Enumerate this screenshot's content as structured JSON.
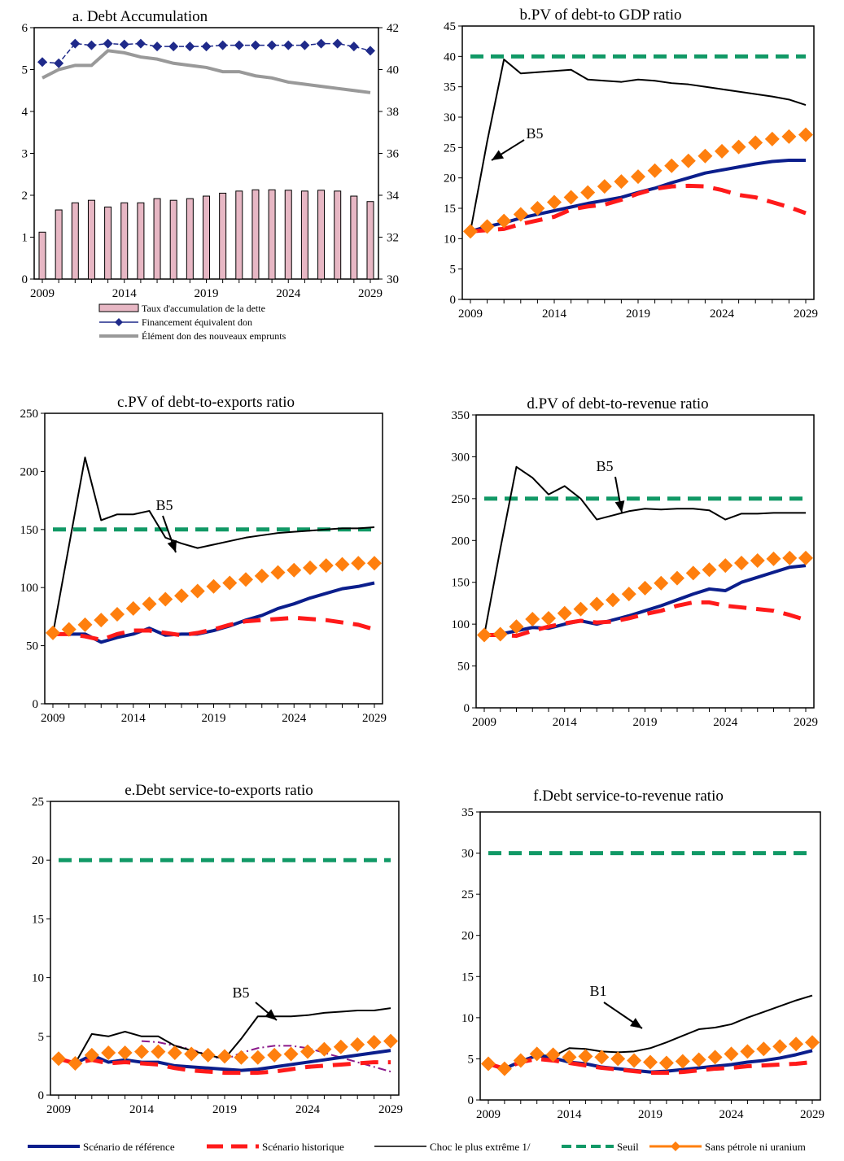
{
  "colors": {
    "reference": "#0b1e8c",
    "historical": "#ff1a1a",
    "extreme_shock": "#000000",
    "threshold": "#119966",
    "no_oil_uranium": "#ff7f0e",
    "debt_bar": "#e7b7c4",
    "grant_line": "#999999",
    "financing_marker": "#1f2a8a",
    "dashdot": "#8b1a8b"
  },
  "legend_bottom": {
    "reference": "Scénario de référence",
    "historical": "Scénario historique",
    "extreme_shock": "Choc le plus extrême 1/",
    "threshold": "Seuil",
    "no_oil_uranium": "Sans pétrole ni uranium"
  },
  "chart_data": [
    {
      "id": "a",
      "type": "bar",
      "title": "a. Debt Accumulation",
      "x": [
        2009,
        2010,
        2011,
        2012,
        2013,
        2014,
        2015,
        2016,
        2017,
        2018,
        2019,
        2020,
        2021,
        2022,
        2023,
        2024,
        2025,
        2026,
        2027,
        2028,
        2029
      ],
      "x_ticks": [
        "2009",
        "2014",
        "2019",
        "2024",
        "2029"
      ],
      "ylim": [
        0,
        6
      ],
      "y_ticks": [
        "0",
        "1",
        "2",
        "3",
        "4",
        "5",
        "6"
      ],
      "y2lim": [
        30,
        42
      ],
      "y2_ticks": [
        "30",
        "32",
        "34",
        "36",
        "38",
        "40",
        "42"
      ],
      "legend": [
        "Taux d'accumulation de la dette",
        "Financement équivalent don",
        "Élément don des nouveaux emprunts"
      ],
      "series": [
        {
          "name": "Taux d'accumulation de la dette",
          "axis": "left",
          "kind": "bar",
          "values": [
            1.12,
            1.65,
            1.82,
            1.88,
            1.72,
            1.82,
            1.82,
            1.92,
            1.88,
            1.92,
            1.98,
            2.05,
            2.1,
            2.13,
            2.13,
            2.12,
            2.1,
            2.12,
            2.1,
            1.98,
            1.85
          ]
        },
        {
          "name": "Financement équivalent don",
          "axis": "left",
          "kind": "line-marker",
          "values": [
            5.18,
            5.15,
            5.62,
            5.58,
            5.62,
            5.6,
            5.62,
            5.55,
            5.55,
            5.55,
            5.55,
            5.58,
            5.58,
            5.58,
            5.58,
            5.58,
            5.58,
            5.62,
            5.62,
            5.55,
            5.45
          ]
        },
        {
          "name": "Élément don des nouveaux emprunts",
          "axis": "right",
          "kind": "line",
          "values": [
            39.6,
            40.0,
            40.2,
            40.2,
            40.9,
            40.8,
            40.6,
            40.5,
            40.3,
            40.2,
            40.1,
            39.9,
            39.9,
            39.7,
            39.6,
            39.4,
            39.3,
            39.2,
            39.1,
            39.0,
            38.9
          ]
        }
      ]
    },
    {
      "id": "b",
      "type": "line",
      "title": "b.PV of debt-to GDP ratio",
      "x": [
        2009,
        2010,
        2011,
        2012,
        2013,
        2014,
        2015,
        2016,
        2017,
        2018,
        2019,
        2020,
        2021,
        2022,
        2023,
        2024,
        2025,
        2026,
        2027,
        2028,
        2029
      ],
      "x_ticks": [
        "2009",
        "2014",
        "2019",
        "2024",
        "2029"
      ],
      "ylim": [
        0,
        45
      ],
      "y_ticks": [
        "0",
        "5",
        "10",
        "15",
        "20",
        "25",
        "30",
        "35",
        "40",
        "45"
      ],
      "annotation": "B5",
      "series": [
        {
          "name": "Scénario de référence",
          "key": "reference",
          "values": [
            11.2,
            12.0,
            12.6,
            13.4,
            14.0,
            14.6,
            15.2,
            15.8,
            16.3,
            16.8,
            17.6,
            18.3,
            19.2,
            20.0,
            20.8,
            21.3,
            21.8,
            22.3,
            22.7,
            22.9,
            22.9
          ]
        },
        {
          "name": "Scénario historique",
          "key": "historical",
          "values": [
            11.2,
            11.4,
            11.6,
            12.4,
            13.0,
            13.6,
            14.8,
            15.3,
            15.6,
            16.4,
            17.4,
            18.2,
            18.6,
            18.7,
            18.6,
            18.0,
            17.2,
            16.8,
            16.0,
            15.2,
            14.2
          ]
        },
        {
          "name": "Choc le plus extrême 1/",
          "key": "extreme_shock",
          "values": [
            11.2,
            26,
            39.5,
            37.2,
            37.4,
            37.6,
            37.8,
            36.2,
            36.0,
            35.8,
            36.2,
            36.0,
            35.6,
            35.4,
            35.0,
            34.6,
            34.2,
            33.8,
            33.4,
            32.9,
            32.0
          ]
        },
        {
          "name": "Seuil",
          "key": "threshold",
          "values": [
            40,
            40,
            40,
            40,
            40,
            40,
            40,
            40,
            40,
            40,
            40,
            40,
            40,
            40,
            40,
            40,
            40,
            40,
            40,
            40,
            40
          ]
        },
        {
          "name": "Sans pétrole ni uranium",
          "key": "no_oil_uranium",
          "values": [
            11.2,
            12.0,
            12.9,
            14.0,
            15.0,
            16.0,
            16.8,
            17.6,
            18.6,
            19.4,
            20.2,
            21.2,
            22.0,
            22.8,
            23.6,
            24.4,
            25.1,
            25.8,
            26.4,
            26.8,
            27.1
          ]
        }
      ]
    },
    {
      "id": "c",
      "type": "line",
      "title": "c.PV of debt-to-exports ratio",
      "x": [
        2009,
        2010,
        2011,
        2012,
        2013,
        2014,
        2015,
        2016,
        2017,
        2018,
        2019,
        2020,
        2021,
        2022,
        2023,
        2024,
        2025,
        2026,
        2027,
        2028,
        2029
      ],
      "x_ticks": [
        "2009",
        "2014",
        "2019",
        "2024",
        "2029"
      ],
      "ylim": [
        0,
        250
      ],
      "y_ticks": [
        "0",
        "50",
        "100",
        "150",
        "200",
        "250"
      ],
      "annotation": "B5",
      "series": [
        {
          "name": "Scénario de référence",
          "key": "reference",
          "values": [
            60,
            60,
            60,
            53,
            57,
            60,
            65,
            59,
            60,
            60,
            63,
            67,
            72,
            76,
            82,
            86,
            91,
            95,
            99,
            101,
            104
          ]
        },
        {
          "name": "Scénario historique",
          "key": "historical",
          "values": [
            60,
            60,
            58,
            55,
            60,
            63,
            63,
            61,
            59,
            61,
            64,
            68,
            71,
            72,
            73,
            74,
            73,
            72,
            70,
            68,
            64
          ]
        },
        {
          "name": "Choc le plus extrême 1/",
          "key": "extreme_shock",
          "values": [
            60,
            136,
            212,
            158,
            163,
            163,
            166,
            143,
            138,
            134,
            137,
            140,
            143,
            145,
            147,
            148,
            149,
            150,
            151,
            151,
            152
          ]
        },
        {
          "name": "Seuil",
          "key": "threshold",
          "values": [
            150,
            150,
            150,
            150,
            150,
            150,
            150,
            150,
            150,
            150,
            150,
            150,
            150,
            150,
            150,
            150,
            150,
            150,
            150,
            150,
            150
          ]
        },
        {
          "name": "Sans pétrole ni uranium",
          "key": "no_oil_uranium",
          "values": [
            61,
            64,
            68,
            72,
            77,
            82,
            86,
            90,
            93,
            97,
            101,
            104,
            107,
            110,
            113,
            115,
            117,
            119,
            120,
            121,
            121
          ]
        }
      ]
    },
    {
      "id": "d",
      "type": "line",
      "title": "d.PV of debt-to-revenue ratio",
      "x": [
        2009,
        2010,
        2011,
        2012,
        2013,
        2014,
        2015,
        2016,
        2017,
        2018,
        2019,
        2020,
        2021,
        2022,
        2023,
        2024,
        2025,
        2026,
        2027,
        2028,
        2029
      ],
      "x_ticks": [
        "2009",
        "2014",
        "2019",
        "2024",
        "2029"
      ],
      "ylim": [
        0,
        350
      ],
      "y_ticks": [
        "0",
        "50",
        "100",
        "150",
        "200",
        "250",
        "300",
        "350"
      ],
      "annotation": "B5",
      "series": [
        {
          "name": "Scénario de référence",
          "key": "reference",
          "values": [
            87,
            88,
            92,
            96,
            95,
            100,
            104,
            100,
            105,
            110,
            116,
            122,
            129,
            136,
            142,
            140,
            150,
            156,
            162,
            168,
            170
          ]
        },
        {
          "name": "Scénario historique",
          "key": "historical",
          "values": [
            87,
            87,
            86,
            92,
            97,
            101,
            104,
            102,
            103,
            107,
            112,
            116,
            122,
            126,
            126,
            122,
            120,
            118,
            116,
            111,
            105
          ]
        },
        {
          "name": "Choc le plus extrême 1/",
          "key": "extreme_shock",
          "values": [
            87,
            190,
            288,
            275,
            255,
            265,
            250,
            225,
            230,
            235,
            238,
            237,
            238,
            238,
            236,
            225,
            232,
            232,
            233,
            233,
            233
          ]
        },
        {
          "name": "Seuil",
          "key": "threshold",
          "values": [
            250,
            250,
            250,
            250,
            250,
            250,
            250,
            250,
            250,
            250,
            250,
            250,
            250,
            250,
            250,
            250,
            250,
            250,
            250,
            250,
            250
          ]
        },
        {
          "name": "Sans pétrole ni uranium",
          "key": "no_oil_uranium",
          "values": [
            87,
            88,
            97,
            106,
            107,
            113,
            118,
            124,
            129,
            136,
            143,
            149,
            155,
            161,
            165,
            170,
            173,
            176,
            178,
            179,
            179
          ]
        }
      ]
    },
    {
      "id": "e",
      "type": "line",
      "title": "e.Debt service-to-exports ratio",
      "x": [
        2009,
        2010,
        2011,
        2012,
        2013,
        2014,
        2015,
        2016,
        2017,
        2018,
        2019,
        2020,
        2021,
        2022,
        2023,
        2024,
        2025,
        2026,
        2027,
        2028,
        2029
      ],
      "x_ticks": [
        "2009",
        "2014",
        "2019",
        "2024",
        "2029"
      ],
      "ylim": [
        0,
        25
      ],
      "y_ticks": [
        "0",
        "5",
        "10",
        "15",
        "20",
        "25"
      ],
      "annotation": "B5",
      "series": [
        {
          "name": "Scénario de référence",
          "key": "reference",
          "values": [
            3.1,
            2.7,
            3.4,
            2.8,
            3.0,
            2.8,
            2.8,
            2.5,
            2.4,
            2.3,
            2.2,
            2.1,
            2.2,
            2.4,
            2.6,
            2.8,
            3.0,
            3.2,
            3.4,
            3.6,
            3.8
          ]
        },
        {
          "name": "Scénario historique",
          "key": "historical",
          "values": [
            3.1,
            2.7,
            3.0,
            2.7,
            2.8,
            2.7,
            2.6,
            2.3,
            2.1,
            2.0,
            1.9,
            1.9,
            1.9,
            2.0,
            2.2,
            2.4,
            2.5,
            2.6,
            2.7,
            2.8,
            2.8
          ]
        },
        {
          "name": "Choc le plus extrême 1/",
          "key": "extreme_shock",
          "values": [
            3.1,
            2.7,
            5.2,
            5.0,
            5.4,
            5.0,
            5.0,
            4.2,
            3.8,
            3.4,
            3.1,
            4.8,
            6.7,
            6.7,
            6.7,
            6.8,
            7.0,
            7.1,
            7.2,
            7.2,
            7.4
          ]
        },
        {
          "name": "Seuil",
          "key": "threshold",
          "values": [
            20,
            20,
            20,
            20,
            20,
            20,
            20,
            20,
            20,
            20,
            20,
            20,
            20,
            20,
            20,
            20,
            20,
            20,
            20,
            20,
            20
          ]
        },
        {
          "name": "Sans pétrole ni uranium",
          "key": "no_oil_uranium",
          "values": [
            3.1,
            2.7,
            3.4,
            3.6,
            3.6,
            3.7,
            3.7,
            3.6,
            3.5,
            3.4,
            3.3,
            3.2,
            3.2,
            3.4,
            3.5,
            3.7,
            3.9,
            4.1,
            4.3,
            4.5,
            4.6
          ]
        },
        {
          "name": "",
          "key": "dashdot",
          "values": [
            null,
            null,
            null,
            null,
            null,
            4.6,
            4.5,
            4.2,
            3.9,
            3.4,
            3.0,
            3.6,
            4.0,
            4.2,
            4.2,
            4.0,
            3.6,
            3.2,
            2.8,
            2.4,
            2.0
          ]
        }
      ]
    },
    {
      "id": "f",
      "type": "line",
      "title": "f.Debt service-to-revenue ratio",
      "x": [
        2009,
        2010,
        2011,
        2012,
        2013,
        2014,
        2015,
        2016,
        2017,
        2018,
        2019,
        2020,
        2021,
        2022,
        2023,
        2024,
        2025,
        2026,
        2027,
        2028,
        2029
      ],
      "x_ticks": [
        "2009",
        "2014",
        "2019",
        "2024",
        "2029"
      ],
      "ylim": [
        0,
        35
      ],
      "y_ticks": [
        "0",
        "5",
        "10",
        "15",
        "20",
        "25",
        "30",
        "35"
      ],
      "annotation": "B1",
      "series": [
        {
          "name": "Scénario de référence",
          "key": "reference",
          "values": [
            4.4,
            3.8,
            4.7,
            5.4,
            5.1,
            4.6,
            4.4,
            4.0,
            3.8,
            3.6,
            3.4,
            3.5,
            3.7,
            3.9,
            4.1,
            4.3,
            4.6,
            4.8,
            5.1,
            5.5,
            6.0
          ]
        },
        {
          "name": "Scénario historique",
          "key": "historical",
          "values": [
            4.4,
            3.8,
            4.6,
            5.0,
            4.8,
            4.5,
            4.2,
            3.9,
            3.7,
            3.5,
            3.3,
            3.3,
            3.4,
            3.6,
            3.8,
            3.9,
            4.1,
            4.2,
            4.3,
            4.4,
            4.6
          ]
        },
        {
          "name": "Choc le plus extrême 1/",
          "key": "extreme_shock",
          "values": [
            4.4,
            3.8,
            4.7,
            5.5,
            5.3,
            6.3,
            6.2,
            5.9,
            5.8,
            5.9,
            6.3,
            7.0,
            7.8,
            8.6,
            8.8,
            9.2,
            10.0,
            10.7,
            11.4,
            12.1,
            12.7
          ]
        },
        {
          "name": "Seuil",
          "key": "threshold",
          "values": [
            30,
            30,
            30,
            30,
            30,
            30,
            30,
            30,
            30,
            30,
            30,
            30,
            30,
            30,
            30,
            30,
            30,
            30,
            30,
            30,
            30
          ]
        },
        {
          "name": "Sans pétrole ni uranium",
          "key": "no_oil_uranium",
          "values": [
            4.4,
            3.8,
            4.8,
            5.6,
            5.5,
            5.2,
            5.3,
            5.2,
            5.0,
            4.8,
            4.6,
            4.5,
            4.7,
            4.9,
            5.2,
            5.6,
            5.9,
            6.2,
            6.5,
            6.8,
            7.0
          ]
        }
      ]
    }
  ]
}
